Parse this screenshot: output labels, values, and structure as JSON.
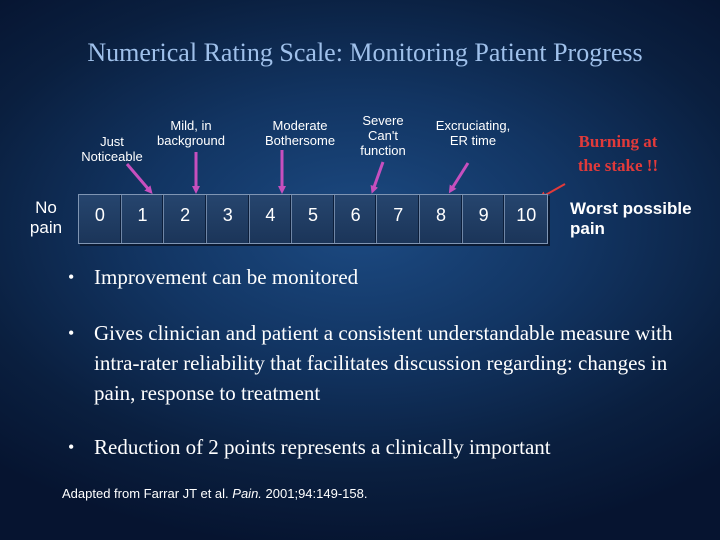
{
  "title": "Numerical Rating Scale: Monitoring Patient Progress",
  "scale": {
    "left_label": "No\npain",
    "right_label": "Worst possible\npain",
    "numbers": [
      "0",
      "1",
      "2",
      "3",
      "4",
      "5",
      "6",
      "7",
      "8",
      "9",
      "10"
    ],
    "descriptors": [
      {
        "text": "Just\nNoticeable",
        "points_to": 1,
        "arrow_color": "#c74fbe"
      },
      {
        "text": "Mild, in\nbackground",
        "points_to": 2,
        "arrow_color": "#c74fbe"
      },
      {
        "text": "Moderate\nBothersome",
        "points_to": 4,
        "arrow_color": "#c74fbe"
      },
      {
        "text": "Severe\nCan't\nfunction",
        "points_to": 6,
        "arrow_color": "#c74fbe"
      },
      {
        "text": "Excruciating,\nER time",
        "points_to": 8,
        "arrow_color": "#c74fbe"
      }
    ],
    "callout": {
      "text": "Burning at\nthe stake !!",
      "color": "#e23a3a",
      "points_to": 10
    }
  },
  "bullets": [
    "Improvement can  be monitored",
    "Gives clinician and patient a consistent understandable measure with intra-rater reliability that facilitates discussion regarding: changes in pain,  response to treatment",
    "Reduction of 2 points  represents a clinically important"
  ],
  "source": {
    "before": "Adapted from Farrar JT et al. ",
    "journal": "Pain.",
    "after": " 2001;94:149-158."
  }
}
